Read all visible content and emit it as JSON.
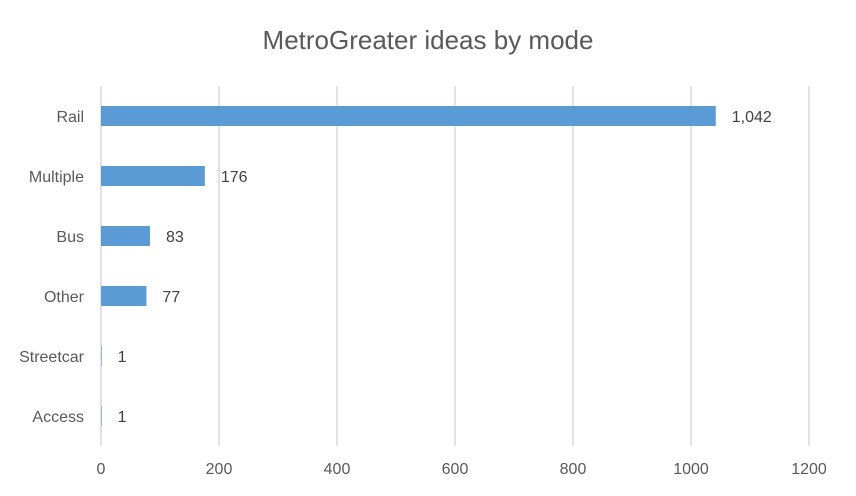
{
  "chart_data": {
    "type": "bar",
    "orientation": "horizontal",
    "title": "MetroGreater ideas by mode",
    "categories": [
      "Rail",
      "Multiple",
      "Bus",
      "Other",
      "Streetcar",
      "Access"
    ],
    "values": [
      1042,
      176,
      83,
      77,
      1,
      1
    ],
    "data_labels": [
      "1,042",
      "176",
      "83",
      "77",
      "1",
      "1"
    ],
    "xlim": [
      0,
      1200
    ],
    "xticks": [
      0,
      200,
      400,
      600,
      800,
      1000,
      1200
    ],
    "xtick_labels": [
      "0",
      "200",
      "400",
      "600",
      "800",
      "1000",
      "1200"
    ],
    "xlabel": "",
    "ylabel": "",
    "grid": "vertical",
    "legend": "none",
    "bar_color": "#5b9bd5"
  }
}
